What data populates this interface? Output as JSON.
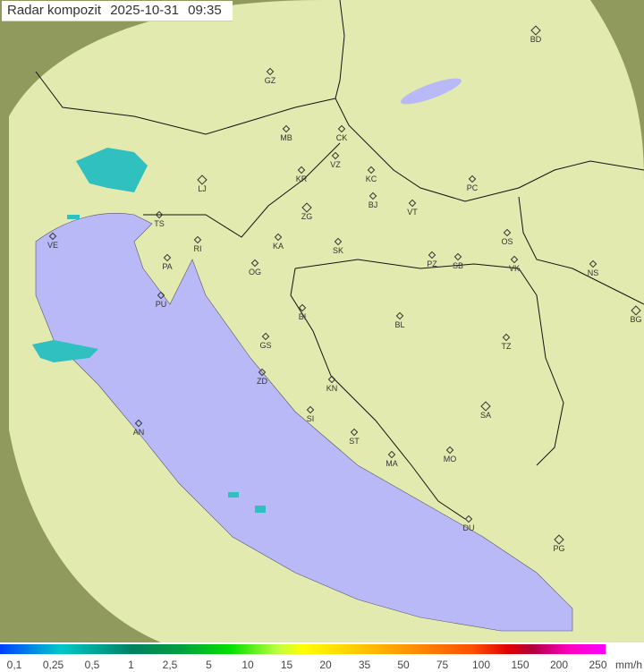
{
  "title": {
    "label": "Radar kompozit",
    "date": "2025-10-31",
    "time": "09:35"
  },
  "map": {
    "colors": {
      "land": "#e6ecb0",
      "outside": "#8f9a5c",
      "sea": "#b9b9f8",
      "echo": "#30c0c0"
    },
    "cities": [
      "GZ",
      "BD",
      "MB",
      "CK",
      "VZ",
      "KR",
      "KC",
      "LJ",
      "PC",
      "BJ",
      "ZG",
      "VT",
      "TS",
      "VE",
      "KA",
      "SK",
      "OS",
      "RI",
      "PA",
      "OG",
      "PZ",
      "SB",
      "VK",
      "NS",
      "PU",
      "BI",
      "BL",
      "BG",
      "GS",
      "TZ",
      "ZD",
      "KN",
      "SA",
      "SI",
      "AN",
      "ST",
      "MA",
      "MO",
      "DU",
      "PG"
    ]
  },
  "legend": {
    "ticks": [
      "0,1",
      "0,25",
      "0,5",
      "1",
      "2,5",
      "5",
      "10",
      "15",
      "20",
      "35",
      "50",
      "75",
      "100",
      "150",
      "200",
      "250"
    ],
    "unit": "mm/h"
  }
}
